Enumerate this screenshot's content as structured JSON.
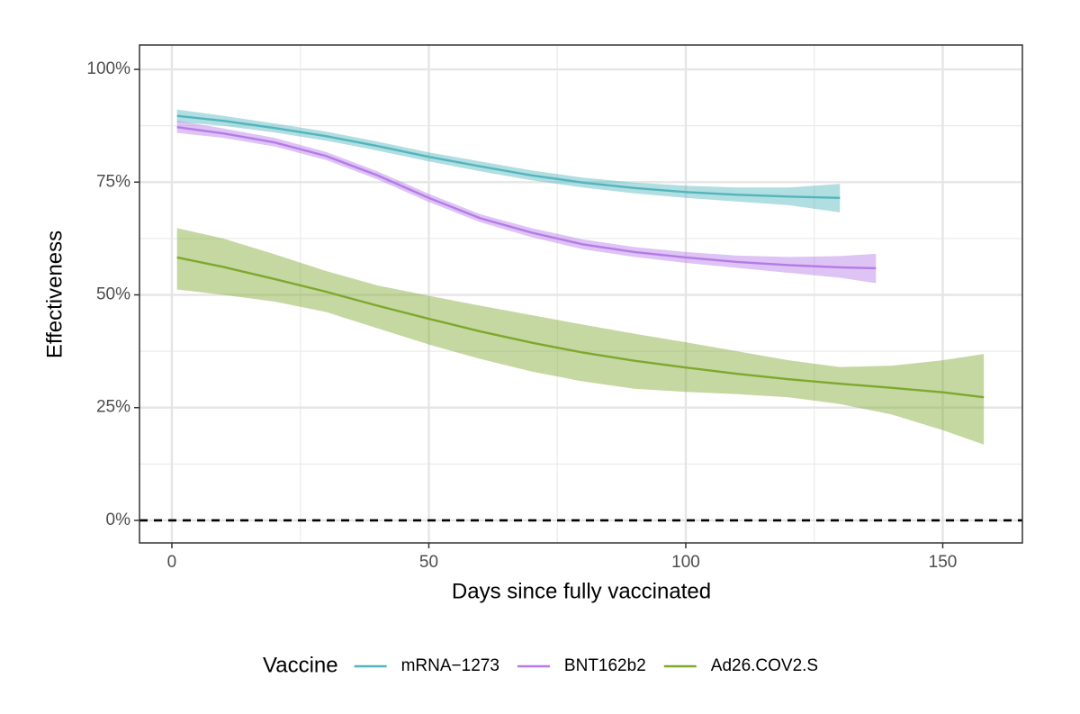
{
  "chart_data": {
    "type": "line",
    "x_label": "Days since fully vaccinated",
    "y_label": "Effectiveness",
    "legend_title": "Vaccine",
    "xlim": [
      -6.3,
      165.5
    ],
    "ylim": [
      -5.0,
      105.4
    ],
    "xticks": [
      0,
      50,
      100,
      150
    ],
    "minor_xticks": [
      25,
      75,
      125
    ],
    "yticks": [
      {
        "value": 0,
        "label": "0%"
      },
      {
        "value": 25,
        "label": "25%"
      },
      {
        "value": 50,
        "label": "50%"
      },
      {
        "value": 75,
        "label": "75%"
      },
      {
        "value": 100,
        "label": "100%"
      }
    ],
    "minor_yticks": [
      12.5,
      37.5,
      62.5,
      87.5
    ],
    "grid": true,
    "hline": 0,
    "legend": "bottom",
    "series": [
      {
        "name": "mRNA−1273",
        "color": "#52b5bd",
        "x": [
          1,
          10,
          20,
          30,
          40,
          50,
          60,
          70,
          80,
          90,
          100,
          110,
          120,
          130
        ],
        "values": [
          89.7,
          88.6,
          87.0,
          85.2,
          83.0,
          80.6,
          78.5,
          76.5,
          74.9,
          73.7,
          72.8,
          72.2,
          71.8,
          71.5
        ],
        "lower": [
          88.3,
          87.5,
          86.0,
          84.2,
          82.0,
          79.6,
          77.4,
          75.4,
          73.8,
          72.5,
          71.5,
          70.7,
          69.9,
          68.3
        ],
        "upper": [
          91.1,
          89.7,
          88.0,
          86.2,
          84.0,
          81.6,
          79.6,
          77.6,
          76.0,
          74.9,
          74.2,
          73.8,
          73.8,
          74.6
        ]
      },
      {
        "name": "BNT162b2",
        "color": "#b57ae8",
        "x": [
          1,
          10,
          20,
          30,
          40,
          50,
          60,
          70,
          80,
          90,
          100,
          110,
          120,
          130,
          137
        ],
        "values": [
          87.2,
          85.8,
          83.8,
          80.8,
          76.5,
          71.5,
          67.0,
          63.8,
          61.2,
          59.5,
          58.3,
          57.3,
          56.6,
          56.1,
          55.9
        ],
        "lower": [
          85.9,
          84.8,
          82.9,
          79.9,
          75.6,
          70.6,
          66.1,
          62.8,
          60.1,
          58.4,
          57.1,
          56.0,
          54.9,
          53.8,
          52.6
        ],
        "upper": [
          88.6,
          86.9,
          84.8,
          81.7,
          77.4,
          72.4,
          67.9,
          64.8,
          62.3,
          60.6,
          59.5,
          58.7,
          58.4,
          58.6,
          59.1
        ]
      },
      {
        "name": "Ad26.COV2.S",
        "color": "#7ea82e",
        "x": [
          1,
          10,
          20,
          30,
          40,
          50,
          60,
          70,
          80,
          90,
          100,
          110,
          120,
          130,
          140,
          150,
          158
        ],
        "values": [
          58.3,
          56.2,
          53.5,
          50.7,
          47.6,
          44.7,
          41.9,
          39.4,
          37.2,
          35.4,
          33.9,
          32.5,
          31.3,
          30.3,
          29.4,
          28.4,
          27.3
        ],
        "lower": [
          51.2,
          50.0,
          48.5,
          46.2,
          42.6,
          39.0,
          35.8,
          33.0,
          30.8,
          29.2,
          28.5,
          28.0,
          27.3,
          25.8,
          23.5,
          20.0,
          16.8
        ],
        "upper": [
          64.8,
          62.5,
          59.0,
          55.3,
          52.1,
          49.8,
          47.6,
          45.5,
          43.4,
          41.4,
          39.5,
          37.5,
          35.5,
          34.0,
          34.3,
          35.5,
          36.9
        ]
      }
    ]
  }
}
